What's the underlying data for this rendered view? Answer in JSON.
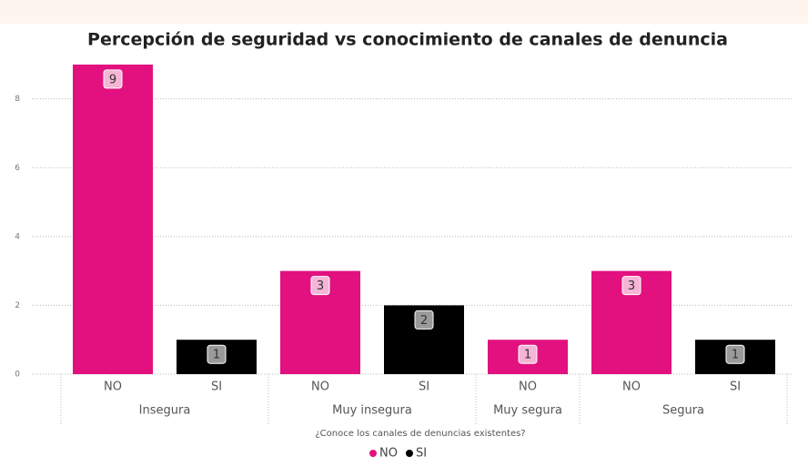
{
  "chart_data": {
    "type": "bar",
    "title": "Percepción de seguridad vs conocimiento de canales de denuncia",
    "x_label": "¿Conoce los canales de denuncias existentes?",
    "groups": [
      {
        "name": "Insegura",
        "categories": [
          "NO",
          "SI"
        ],
        "values": [
          9,
          1
        ]
      },
      {
        "name": "Muy insegura",
        "categories": [
          "NO",
          "SI"
        ],
        "values": [
          3,
          2
        ]
      },
      {
        "name": "Muy segura",
        "categories": [
          "NO"
        ],
        "values": [
          1
        ]
      },
      {
        "name": "Segura",
        "categories": [
          "NO",
          "SI"
        ],
        "values": [
          3,
          1
        ]
      }
    ],
    "series": [
      {
        "name": "NO",
        "color": "#e2117f"
      },
      {
        "name": "SI",
        "color": "#000000"
      }
    ],
    "ylim": [
      0,
      9.5
    ],
    "yticks": [
      0,
      2,
      4,
      6,
      8
    ],
    "grid": true
  }
}
